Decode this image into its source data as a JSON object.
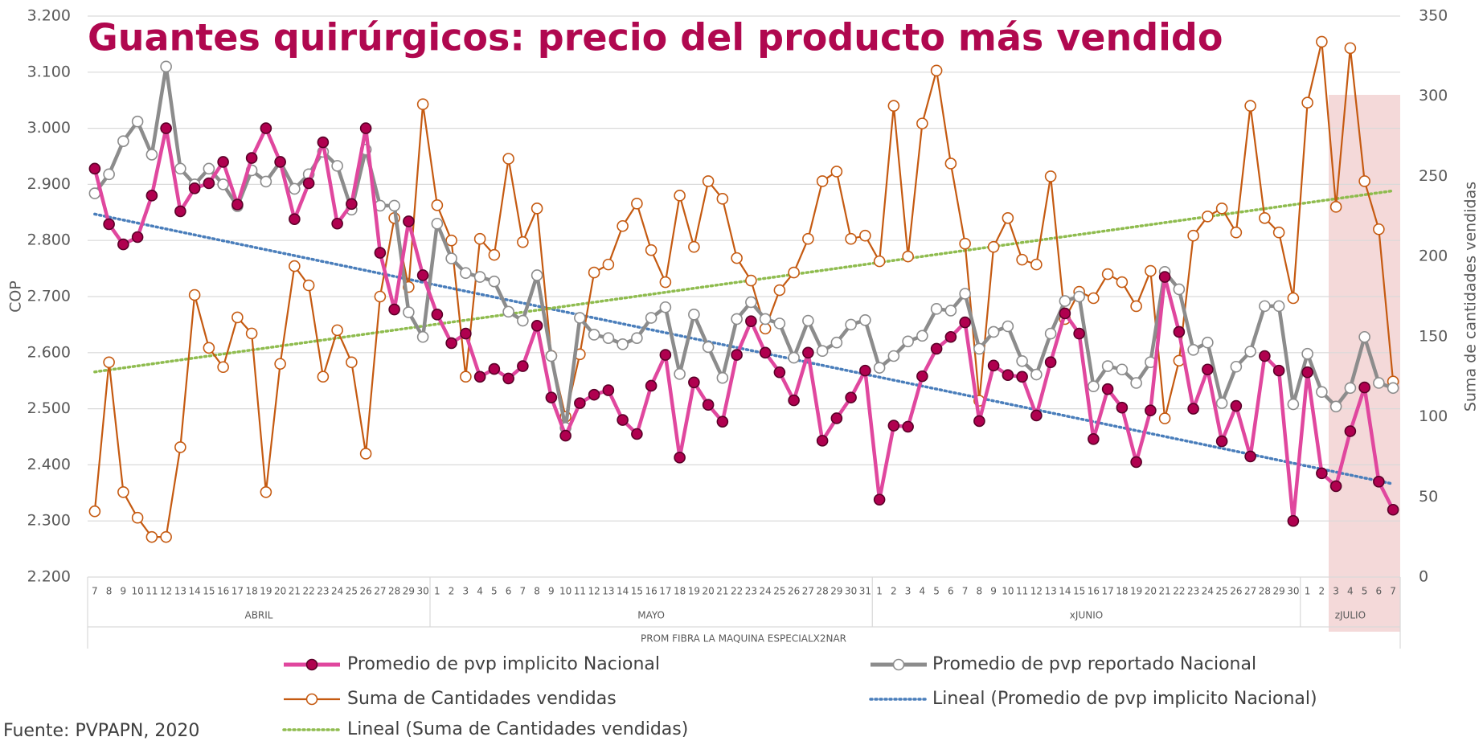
{
  "chart_data": {
    "type": "line",
    "title": "Guantes quirúrgicos: precio del producto más vendido",
    "x_group_title": "PROM FIBRA LA MAQUINA ESPECIALX2NAR",
    "groups": [
      {
        "name": "ABRIL",
        "categories": [
          "7",
          "8",
          "9",
          "10",
          "11",
          "12",
          "13",
          "14",
          "15",
          "16",
          "17",
          "18",
          "19",
          "20",
          "21",
          "22",
          "23",
          "24",
          "25",
          "26",
          "27",
          "28",
          "29",
          "30"
        ]
      },
      {
        "name": "MAYO",
        "categories": [
          "1",
          "2",
          "3",
          "4",
          "5",
          "6",
          "7",
          "8",
          "9",
          "10",
          "11",
          "12",
          "13",
          "14",
          "15",
          "16",
          "17",
          "18",
          "19",
          "20",
          "21",
          "22",
          "23",
          "24",
          "25",
          "26",
          "27",
          "28",
          "29",
          "30",
          "31"
        ]
      },
      {
        "name": "xJUNIO",
        "categories": [
          "1",
          "2",
          "3",
          "4",
          "5",
          "6",
          "7",
          "8",
          "9",
          "10",
          "11",
          "12",
          "13",
          "14",
          "15",
          "16",
          "17",
          "18",
          "19",
          "20",
          "21",
          "22",
          "23",
          "24",
          "25",
          "26",
          "27",
          "28",
          "29",
          "30"
        ]
      },
      {
        "name": "zJULIO",
        "categories": [
          "1",
          "2",
          "3",
          "4",
          "5",
          "6",
          "7"
        ]
      }
    ],
    "ylabel": "COP",
    "y2label": "Suma de cantidades vendidas",
    "ylim": [
      2200,
      3200
    ],
    "yticks": [
      {
        "value": 2200,
        "label": "2.200"
      },
      {
        "value": 2300,
        "label": "2.300"
      },
      {
        "value": 2400,
        "label": "2.400"
      },
      {
        "value": 2500,
        "label": "2.500"
      },
      {
        "value": 2600,
        "label": "2.600"
      },
      {
        "value": 2700,
        "label": "2.700"
      },
      {
        "value": 2800,
        "label": "2.800"
      },
      {
        "value": 2900,
        "label": "2.900"
      },
      {
        "value": 3000,
        "label": "3.000"
      },
      {
        "value": 3100,
        "label": "3.100"
      },
      {
        "value": 3200,
        "label": "3.200"
      }
    ],
    "y2lim": [
      0,
      350
    ],
    "y2ticks": [
      0,
      50,
      100,
      150,
      200,
      250,
      300,
      350
    ],
    "grid": true,
    "series": [
      {
        "name": "Promedio de pvp implicito Nacional",
        "color": "#e0479e",
        "marker_color": "#b0004f",
        "axis": "y",
        "values": [
          2928,
          2829,
          2793,
          2806,
          2880,
          3000,
          2852,
          2893,
          2902,
          2940,
          2864,
          2947,
          3000,
          2940,
          2838,
          2902,
          2975,
          2830,
          2865,
          3000,
          2778,
          2677,
          2834,
          2738,
          2668,
          2617,
          2634,
          2557,
          2571,
          2554,
          2576,
          2648,
          2520,
          2452,
          2510,
          2525,
          2533,
          2480,
          2455,
          2541,
          2596,
          2413,
          2547,
          2507,
          2477,
          2596,
          2656,
          2600,
          2565,
          2515,
          2600,
          2443,
          2483,
          2520,
          2568,
          2338,
          2470,
          2468,
          2558,
          2607,
          2628,
          2654,
          2478,
          2577,
          2560,
          2557,
          2488,
          2583,
          2670,
          2634,
          2446,
          2535,
          2502,
          2405,
          2497,
          2735,
          2637,
          2500,
          2570,
          2442,
          2505,
          2415,
          2594,
          2568,
          2300,
          2565,
          2385,
          2362,
          2460,
          2538,
          2370,
          2320
        ]
      },
      {
        "name": "Promedio de pvp reportado Nacional",
        "color": "#8c8c8c",
        "marker_color": "#ffffff",
        "axis": "y",
        "values": [
          2884,
          2918,
          2977,
          3012,
          2953,
          3110,
          2928,
          2900,
          2928,
          2900,
          2861,
          2925,
          2905,
          2940,
          2892,
          2918,
          2958,
          2933,
          2855,
          2962,
          2862,
          2862,
          2672,
          2628,
          2830,
          2768,
          2742,
          2735,
          2727,
          2673,
          2657,
          2738,
          2594,
          2466,
          2662,
          2632,
          2626,
          2615,
          2626,
          2662,
          2681,
          2562,
          2668,
          2610,
          2555,
          2660,
          2690,
          2660,
          2652,
          2591,
          2657,
          2603,
          2618,
          2650,
          2658,
          2573,
          2594,
          2620,
          2630,
          2678,
          2675,
          2705,
          2607,
          2637,
          2647,
          2585,
          2561,
          2634,
          2692,
          2700,
          2540,
          2576,
          2570,
          2546,
          2583,
          2744,
          2713,
          2605,
          2618,
          2510,
          2575,
          2602,
          2683,
          2683,
          2508,
          2598,
          2530,
          2504,
          2537,
          2628,
          2546,
          2537
        ]
      },
      {
        "name": "Suma de Cantidades vendidas",
        "color": "#c55a11",
        "marker_color": "#ffffff",
        "axis": "y2",
        "values": [
          41,
          134,
          53,
          37,
          25,
          25,
          81,
          176,
          143,
          131,
          162,
          152,
          53,
          133,
          194,
          182,
          125,
          154,
          134,
          77,
          175,
          224,
          181,
          295,
          232,
          210,
          125,
          211,
          201,
          261,
          209,
          230,
          138,
          100,
          139,
          190,
          195,
          219,
          233,
          204,
          184,
          238,
          206,
          247,
          236,
          199,
          185,
          155,
          179,
          190,
          211,
          247,
          253,
          211,
          213,
          197,
          294,
          200,
          283,
          316,
          258,
          208,
          110,
          206,
          224,
          198,
          195,
          250,
          161,
          178,
          174,
          189,
          184,
          169,
          191,
          99,
          135,
          213,
          225,
          230,
          215,
          294,
          224,
          215,
          174,
          296,
          334,
          231,
          330,
          247,
          217,
          122
        ]
      }
    ],
    "trendlines": [
      {
        "name": "Lineal (Promedio de pvp implicito Nacional)",
        "color": "#4a7ebb",
        "axis": "y",
        "values": [
          2847,
          2366
        ]
      },
      {
        "name": "Lineal (Suma de Cantidades vendidas)",
        "color": "#8fbc4f",
        "axis": "y2",
        "values": [
          128,
          241
        ]
      }
    ]
  },
  "source": "Fuente: PVPAPN, 2020"
}
